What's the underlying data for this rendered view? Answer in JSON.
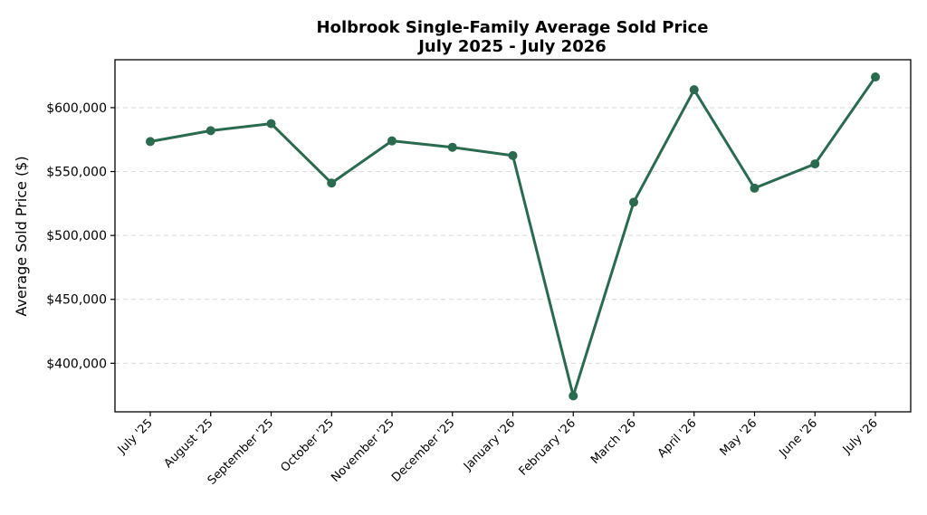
{
  "chart_data": {
    "type": "line",
    "title": "Holbrook Single-Family Average Sold Price",
    "subtitle": "July 2025 - July 2026",
    "xlabel": "",
    "ylabel": "Average Sold Price ($)",
    "categories": [
      "July '25",
      "August '25",
      "September '25",
      "October '25",
      "November '25",
      "December '25",
      "January '26",
      "February '26",
      "March '26",
      "April '26",
      "May '26",
      "June '26",
      "July '26"
    ],
    "series": [
      {
        "values": [
          573500,
          582000,
          587500,
          541000,
          574000,
          569000,
          562500,
          374500,
          526000,
          614000,
          537000,
          556000,
          624000
        ]
      }
    ],
    "yticks": [
      400000,
      450000,
      500000,
      550000,
      600000
    ],
    "ytick_labels": [
      "$400,000",
      "$450,000",
      "$500,000",
      "$550,000",
      "$600,000"
    ],
    "ylim": [
      362000,
      637500
    ],
    "grid": "horizontal-dashed",
    "legend": "none",
    "line_color": "#2a6a4f"
  }
}
